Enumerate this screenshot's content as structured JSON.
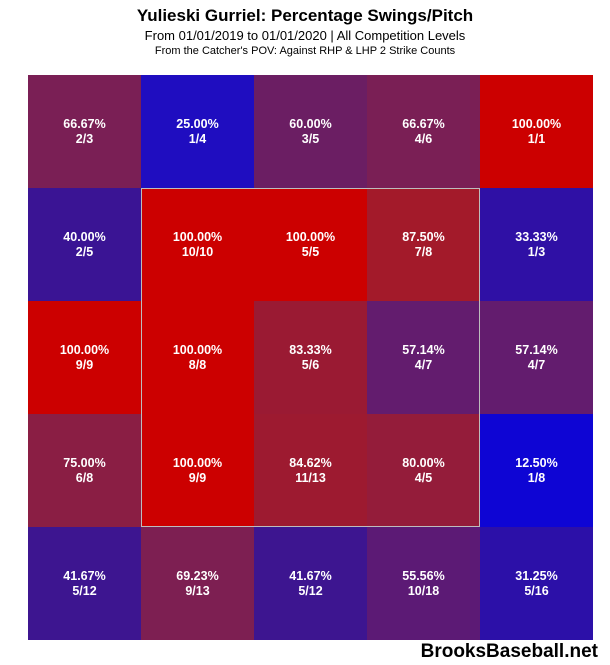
{
  "header": {
    "title": "Yulieski Gurriel: Percentage Swings/Pitch",
    "subtitle": "From 01/01/2019 to 01/01/2020 | All Competition Levels",
    "filters": "From the Catcher's POV:  Against RHP & LHP    2 Strike Counts"
  },
  "brand": "BrooksBaseball.net",
  "chart_data": {
    "type": "heatmap",
    "title": "Yulieski Gurriel: Percentage Swings/Pitch",
    "rows": 5,
    "cols": 5,
    "strike_zone": "inner 3x3 (rows 2-4, cols 2-4)",
    "color_scale": {
      "low": "#0000cc",
      "high": "#cc0000"
    },
    "cells": [
      [
        {
          "pct": "66.67%",
          "count": "2/3",
          "color": "#7a1f55"
        },
        {
          "pct": "25.00%",
          "count": "1/4",
          "color": "#1f0dc0"
        },
        {
          "pct": "60.00%",
          "count": "3/5",
          "color": "#6b1e63"
        },
        {
          "pct": "66.67%",
          "count": "4/6",
          "color": "#7a1f55"
        },
        {
          "pct": "100.00%",
          "count": "1/1",
          "color": "#cc0000"
        }
      ],
      [
        {
          "pct": "40.00%",
          "count": "2/5",
          "color": "#3a1494"
        },
        {
          "pct": "100.00%",
          "count": "10/10",
          "color": "#cc0000"
        },
        {
          "pct": "100.00%",
          "count": "5/5",
          "color": "#cc0000"
        },
        {
          "pct": "87.50%",
          "count": "7/8",
          "color": "#a31a2a"
        },
        {
          "pct": "33.33%",
          "count": "1/3",
          "color": "#2f10a5"
        }
      ],
      [
        {
          "pct": "100.00%",
          "count": "9/9",
          "color": "#cc0000"
        },
        {
          "pct": "100.00%",
          "count": "8/8",
          "color": "#cc0000"
        },
        {
          "pct": "83.33%",
          "count": "5/6",
          "color": "#9a1a33"
        },
        {
          "pct": "57.14%",
          "count": "4/7",
          "color": "#631c6e"
        },
        {
          "pct": "57.14%",
          "count": "4/7",
          "color": "#631c6e"
        }
      ],
      [
        {
          "pct": "75.00%",
          "count": "6/8",
          "color": "#8a1e44"
        },
        {
          "pct": "100.00%",
          "count": "9/9",
          "color": "#cc0000"
        },
        {
          "pct": "84.62%",
          "count": "11/13",
          "color": "#9d1a30"
        },
        {
          "pct": "80.00%",
          "count": "4/5",
          "color": "#941c3a"
        },
        {
          "pct": "12.50%",
          "count": "1/8",
          "color": "#0e05d4"
        }
      ],
      [
        {
          "pct": "41.67%",
          "count": "5/12",
          "color": "#3d1590"
        },
        {
          "pct": "69.23%",
          "count": "9/13",
          "color": "#7d1f52"
        },
        {
          "pct": "41.67%",
          "count": "5/12",
          "color": "#3d1590"
        },
        {
          "pct": "55.56%",
          "count": "10/18",
          "color": "#5c1a75"
        },
        {
          "pct": "31.25%",
          "count": "5/16",
          "color": "#2c10a8"
        }
      ]
    ]
  }
}
